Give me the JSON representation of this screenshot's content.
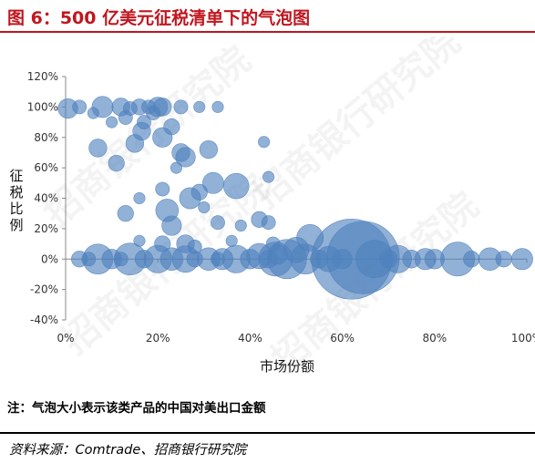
{
  "header": {
    "title": "图 6：500 亿美元征税清单下的气泡图"
  },
  "note": "注：气泡大小表示该类产品的中国对美出口金额",
  "source": "资料来源：Comtrade、招商银行研究院",
  "watermark": "招商银行研究院",
  "colors": {
    "title": "#c0161e",
    "bubble": "#4f81bd",
    "axis": "#888888"
  },
  "chart_data": {
    "type": "scatter",
    "xlabel": "市场份额",
    "ylabel": "征税比例",
    "xlim": [
      0,
      1
    ],
    "ylim": [
      -0.4,
      1.2
    ],
    "x_tick_labels": [
      "0%",
      "20%",
      "40%",
      "60%",
      "80%",
      "100%"
    ],
    "y_tick_labels": [
      "-40%",
      "-20%",
      "0%",
      "20%",
      "40%",
      "60%",
      "80%",
      "100%",
      "120%"
    ],
    "grid": false,
    "legend": "none",
    "bubble_size_meaning": "中国对美出口金额 (相对值)",
    "points": [
      {
        "x": 0.62,
        "y": 0.0,
        "s": 100
      },
      {
        "x": 0.645,
        "y": 0.01,
        "s": 82
      },
      {
        "x": 0.67,
        "y": 0.0,
        "s": 22
      },
      {
        "x": 0.48,
        "y": 0.0,
        "s": 24
      },
      {
        "x": 0.455,
        "y": 0.0,
        "s": 18
      },
      {
        "x": 0.85,
        "y": 0.0,
        "s": 18
      },
      {
        "x": 0.14,
        "y": 0.0,
        "s": 16
      },
      {
        "x": 0.07,
        "y": 0.0,
        "s": 14
      },
      {
        "x": 0.2,
        "y": 0.0,
        "s": 12
      },
      {
        "x": 0.26,
        "y": 0.0,
        "s": 11
      },
      {
        "x": 0.37,
        "y": 0.0,
        "s": 12
      },
      {
        "x": 0.52,
        "y": 0.0,
        "s": 14
      },
      {
        "x": 0.57,
        "y": 0.0,
        "s": 10
      },
      {
        "x": 0.72,
        "y": 0.0,
        "s": 12
      },
      {
        "x": 0.92,
        "y": 0.0,
        "s": 8
      },
      {
        "x": 0.99,
        "y": 0.0,
        "s": 7
      },
      {
        "x": 0.42,
        "y": 0.02,
        "s": 10
      },
      {
        "x": 0.31,
        "y": 0.0,
        "s": 8
      },
      {
        "x": 0.1,
        "y": 0.0,
        "s": 6
      },
      {
        "x": 0.78,
        "y": 0.0,
        "s": 7
      },
      {
        "x": 0.8,
        "y": 0.0,
        "s": 6
      },
      {
        "x": 0.5,
        "y": 0.06,
        "s": 10
      },
      {
        "x": 0.53,
        "y": 0.14,
        "s": 11
      },
      {
        "x": 0.34,
        "y": 0.0,
        "s": 7
      },
      {
        "x": 0.23,
        "y": 0.0,
        "s": 8
      },
      {
        "x": 0.17,
        "y": 0.0,
        "s": 5
      },
      {
        "x": 0.4,
        "y": 0.0,
        "s": 6
      },
      {
        "x": 0.44,
        "y": 0.0,
        "s": 5
      },
      {
        "x": 0.6,
        "y": 0.0,
        "s": 6
      },
      {
        "x": 0.7,
        "y": 0.0,
        "s": 5
      },
      {
        "x": 0.75,
        "y": 0.0,
        "s": 5
      },
      {
        "x": 0.88,
        "y": 0.0,
        "s": 4
      },
      {
        "x": 0.95,
        "y": 0.0,
        "s": 4
      },
      {
        "x": 0.03,
        "y": 0.0,
        "s": 4
      },
      {
        "x": 0.05,
        "y": 0.0,
        "s": 3
      },
      {
        "x": 0.12,
        "y": 0.0,
        "s": 3
      },
      {
        "x": 0.28,
        "y": 0.0,
        "s": 4
      },
      {
        "x": 0.33,
        "y": 0.0,
        "s": 3
      },
      {
        "x": 0.46,
        "y": 0.03,
        "s": 6
      },
      {
        "x": 0.005,
        "y": 0.99,
        "s": 6
      },
      {
        "x": 0.03,
        "y": 1.0,
        "s": 3
      },
      {
        "x": 0.08,
        "y": 1.0,
        "s": 7
      },
      {
        "x": 0.12,
        "y": 1.0,
        "s": 5
      },
      {
        "x": 0.16,
        "y": 1.0,
        "s": 4
      },
      {
        "x": 0.2,
        "y": 1.0,
        "s": 6
      },
      {
        "x": 0.21,
        "y": 1.0,
        "s": 5
      },
      {
        "x": 0.25,
        "y": 1.0,
        "s": 3
      },
      {
        "x": 0.29,
        "y": 1.0,
        "s": 2
      },
      {
        "x": 0.33,
        "y": 1.0,
        "s": 2
      },
      {
        "x": 0.14,
        "y": 0.99,
        "s": 3
      },
      {
        "x": 0.18,
        "y": 1.0,
        "s": 3
      },
      {
        "x": 0.07,
        "y": 0.73,
        "s": 5
      },
      {
        "x": 0.11,
        "y": 0.63,
        "s": 4
      },
      {
        "x": 0.15,
        "y": 0.76,
        "s": 5
      },
      {
        "x": 0.165,
        "y": 0.84,
        "s": 5
      },
      {
        "x": 0.17,
        "y": 0.9,
        "s": 3
      },
      {
        "x": 0.21,
        "y": 0.8,
        "s": 6
      },
      {
        "x": 0.23,
        "y": 0.87,
        "s": 4
      },
      {
        "x": 0.25,
        "y": 0.7,
        "s": 5
      },
      {
        "x": 0.26,
        "y": 0.67,
        "s": 6
      },
      {
        "x": 0.31,
        "y": 0.72,
        "s": 5
      },
      {
        "x": 0.32,
        "y": 0.5,
        "s": 7
      },
      {
        "x": 0.37,
        "y": 0.48,
        "s": 10
      },
      {
        "x": 0.27,
        "y": 0.4,
        "s": 7
      },
      {
        "x": 0.29,
        "y": 0.44,
        "s": 4
      },
      {
        "x": 0.22,
        "y": 0.32,
        "s": 8
      },
      {
        "x": 0.23,
        "y": 0.22,
        "s": 6
      },
      {
        "x": 0.13,
        "y": 0.3,
        "s": 4
      },
      {
        "x": 0.21,
        "y": 0.46,
        "s": 3
      },
      {
        "x": 0.42,
        "y": 0.26,
        "s": 4
      },
      {
        "x": 0.44,
        "y": 0.24,
        "s": 3
      },
      {
        "x": 0.33,
        "y": 0.24,
        "s": 3
      },
      {
        "x": 0.26,
        "y": 0.1,
        "s": 5
      },
      {
        "x": 0.28,
        "y": 0.08,
        "s": 3
      },
      {
        "x": 0.21,
        "y": 0.1,
        "s": 4
      },
      {
        "x": 0.43,
        "y": 0.77,
        "s": 2
      },
      {
        "x": 0.44,
        "y": 0.54,
        "s": 2
      },
      {
        "x": 0.1,
        "y": 0.9,
        "s": 2
      },
      {
        "x": 0.06,
        "y": 0.96,
        "s": 2
      },
      {
        "x": 0.13,
        "y": 0.93,
        "s": 3
      },
      {
        "x": 0.19,
        "y": 0.96,
        "s": 3
      },
      {
        "x": 0.38,
        "y": 0.22,
        "s": 2
      },
      {
        "x": 0.16,
        "y": 0.4,
        "s": 2
      },
      {
        "x": 0.24,
        "y": 0.6,
        "s": 2
      },
      {
        "x": 0.3,
        "y": 0.34,
        "s": 2
      },
      {
        "x": 0.45,
        "y": 0.1,
        "s": 3
      },
      {
        "x": 0.55,
        "y": 0.0,
        "s": 5
      },
      {
        "x": 0.16,
        "y": 0.12,
        "s": 2
      },
      {
        "x": 0.36,
        "y": 0.12,
        "s": 2
      }
    ]
  }
}
